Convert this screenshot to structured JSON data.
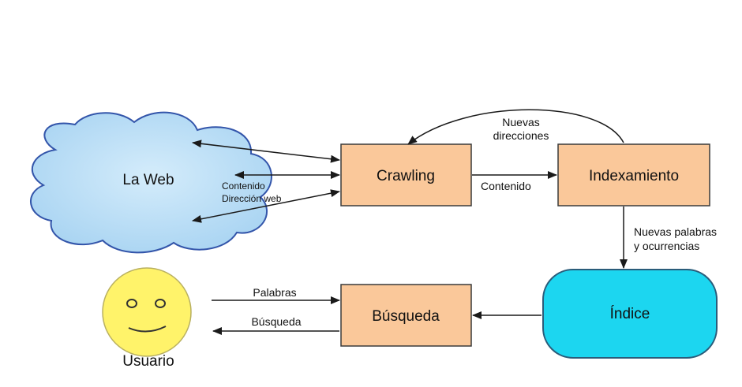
{
  "nodes": {
    "web": {
      "label": "La Web"
    },
    "crawling": {
      "label": "Crawling"
    },
    "indexing": {
      "label": "Indexamiento"
    },
    "index": {
      "label": "Índice"
    },
    "search": {
      "label": "Búsqueda"
    },
    "user": {
      "label": "Usuario"
    }
  },
  "edges": {
    "web_content": "Contenido",
    "web_address": "Dirección web",
    "new_addresses_line1": "Nuevas",
    "new_addresses_line2": "direcciones",
    "crawl_content": "Contenido",
    "new_words_line1": "Nuevas palabras",
    "new_words_line2": "y ocurrencias",
    "words": "Palabras",
    "search_results": "Búsqueda"
  },
  "colors": {
    "box_fill": "#FAC89A",
    "box_stroke": "#3a3a3a",
    "cloud_fill": "#B8DDF5",
    "cloud_stroke": "#3355aa",
    "index_fill": "#1CD6F0",
    "index_stroke": "#2a5c7a",
    "face_fill": "#FFF36A",
    "arrow": "#1a1a1a"
  }
}
